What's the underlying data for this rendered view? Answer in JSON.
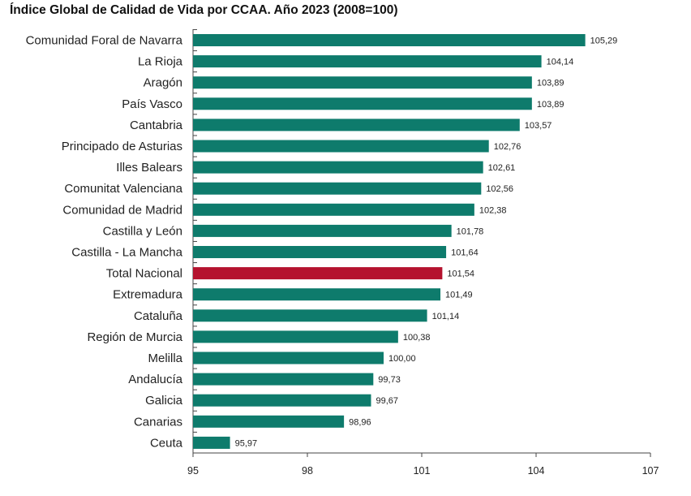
{
  "chart_data": {
    "type": "bar",
    "orientation": "horizontal",
    "title": "Índice Global de Calidad de Vida por CCAA. Año 2023 (2008=100)",
    "categories": [
      "Comunidad Foral de Navarra",
      "La Rioja",
      "Aragón",
      "País Vasco",
      "Cantabria",
      "Principado de Asturias",
      "Illes Balears",
      "Comunitat Valenciana",
      "Comunidad de Madrid",
      "Castilla y León",
      "Castilla - La Mancha",
      "Total Nacional",
      "Extremadura",
      "Cataluña",
      "Región de Murcia",
      "Melilla",
      "Andalucía",
      "Galicia",
      "Canarias",
      "Ceuta"
    ],
    "values": [
      105.29,
      104.14,
      103.89,
      103.89,
      103.57,
      102.76,
      102.61,
      102.56,
      102.38,
      101.78,
      101.64,
      101.54,
      101.49,
      101.14,
      100.38,
      100.0,
      99.73,
      99.67,
      98.96,
      95.97
    ],
    "value_labels": [
      "105,29",
      "104,14",
      "103,89",
      "103,89",
      "103,57",
      "102,76",
      "102,61",
      "102,56",
      "102,38",
      "101,78",
      "101,64",
      "101,54",
      "101,49",
      "101,14",
      "100,38",
      "100,00",
      "99,73",
      "99,67",
      "98,96",
      "95,97"
    ],
    "highlight_index": 11,
    "xlim": [
      95,
      107
    ],
    "xticks": [
      95,
      98,
      101,
      104,
      107
    ],
    "grid": false,
    "colors": {
      "bar": "#0e7b6c",
      "highlight": "#b5122e",
      "axis": "#444444"
    }
  }
}
